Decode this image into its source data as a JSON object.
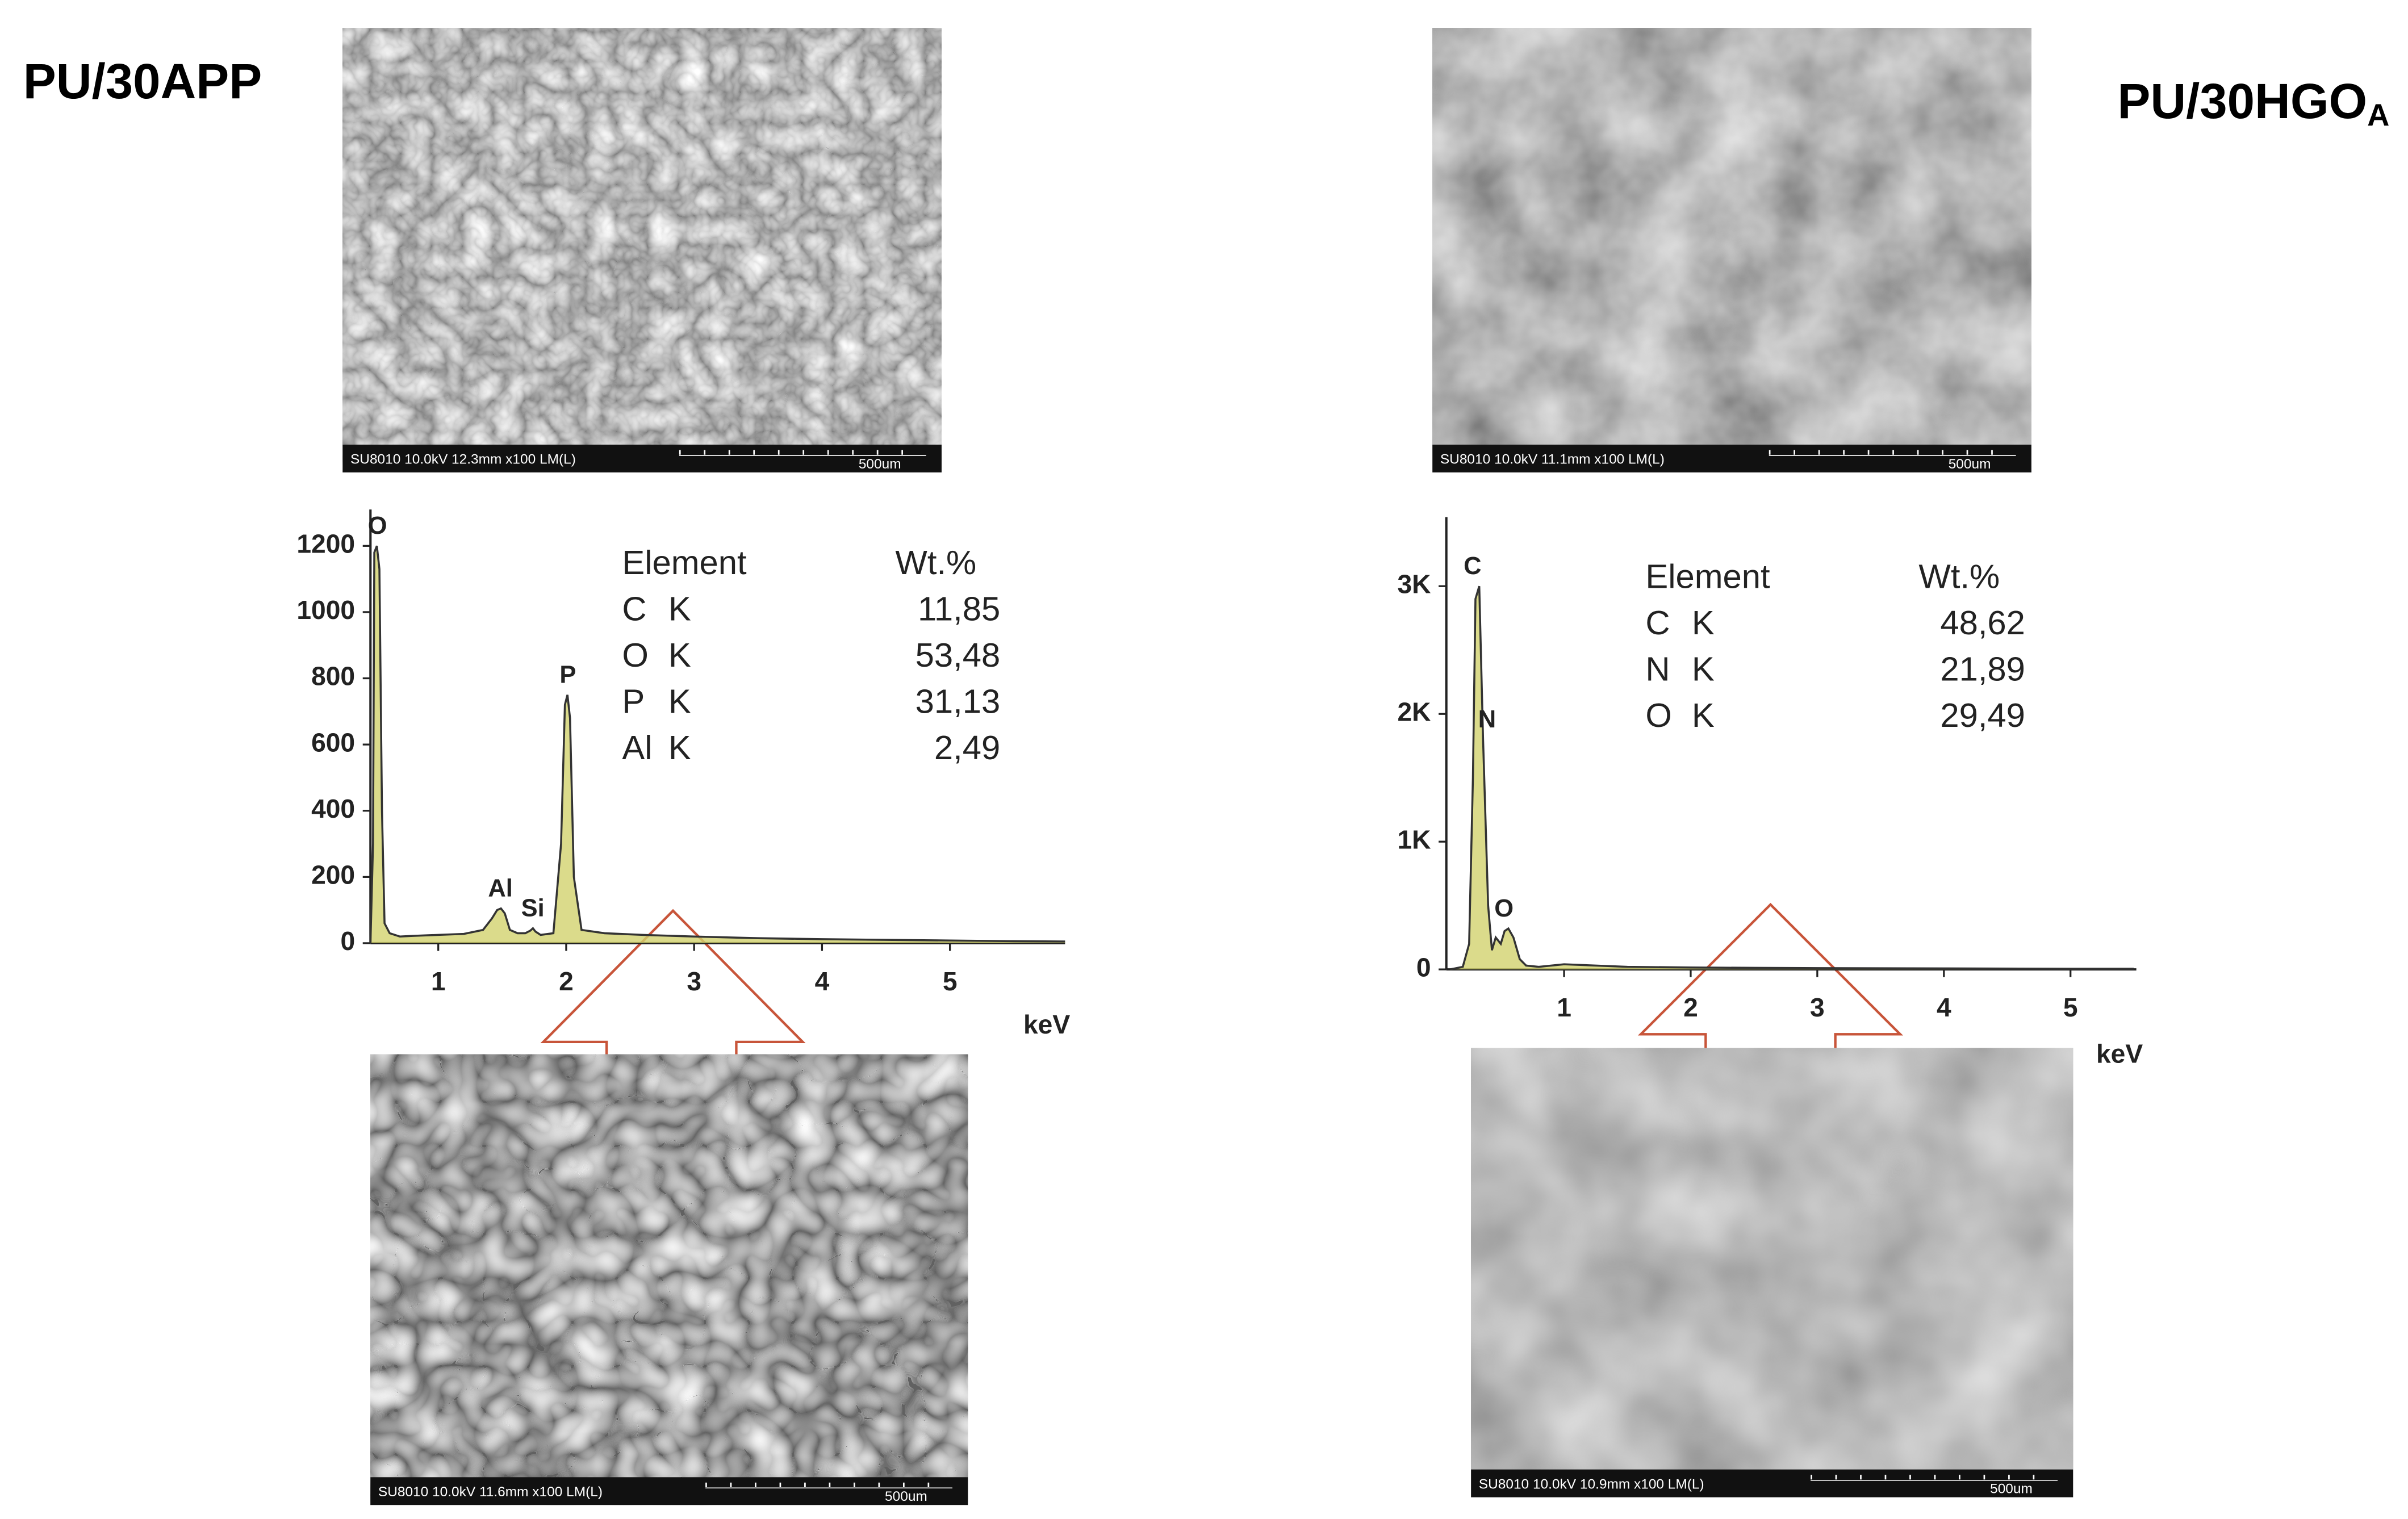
{
  "chart_data": [
    {
      "type": "line",
      "title": "PU/30APP",
      "xlabel": "keV",
      "x": [
        0.47,
        0.49,
        0.5,
        0.52,
        0.54,
        0.56,
        0.58,
        0.62,
        0.7,
        0.8,
        1.0,
        1.2,
        1.35,
        1.42,
        1.46,
        1.49,
        1.52,
        1.56,
        1.62,
        1.68,
        1.72,
        1.74,
        1.76,
        1.8,
        1.9,
        1.96,
        1.99,
        2.01,
        2.03,
        2.06,
        2.12,
        2.3,
        2.6,
        3.0,
        3.5,
        4.0,
        4.5,
        5.0,
        5.5,
        5.9
      ],
      "values": [
        0,
        300,
        1180,
        1200,
        1130,
        400,
        60,
        30,
        20,
        22,
        25,
        28,
        40,
        75,
        100,
        105,
        90,
        40,
        30,
        30,
        38,
        45,
        35,
        25,
        30,
        300,
        720,
        750,
        680,
        200,
        40,
        30,
        25,
        20,
        15,
        12,
        10,
        8,
        6,
        5
      ],
      "color": "#333333",
      "fill_color": "#d2d26e",
      "xlim": [
        0.47,
        5.9
      ],
      "xticks": [
        1,
        2,
        3,
        4,
        5
      ],
      "ylim": [
        0,
        1310
      ],
      "yticks": [
        0,
        200,
        400,
        600,
        800,
        1000,
        1200
      ],
      "annotations": [
        {
          "text": "O",
          "x": 0.525
        },
        {
          "text": "Al",
          "x": 1.486
        },
        {
          "text": "Si",
          "x": 1.739
        },
        {
          "text": "P",
          "x": 2.013
        }
      ],
      "table": {
        "columns": [
          "Element",
          "Wt.%"
        ],
        "rows": [
          [
            "C",
            "K",
            "11,85"
          ],
          [
            "O",
            "K",
            "53,48"
          ],
          [
            "P",
            "K",
            "31,13"
          ],
          [
            "Al",
            "K",
            "2,49"
          ]
        ]
      },
      "sem_images": [
        {
          "caption": "SU8010 10.0kV 12.3mm x100 LM(L)",
          "scale_label": "500um"
        },
        {
          "caption": "SU8010 10.0kV 11.6mm x100 LM(L)",
          "scale_label": "500um"
        }
      ]
    },
    {
      "type": "line",
      "title": "PU/30HGO",
      "title_subscript": "A",
      "xlabel": "keV",
      "x": [
        0.1,
        0.2,
        0.25,
        0.28,
        0.3,
        0.33,
        0.36,
        0.4,
        0.43,
        0.46,
        0.5,
        0.53,
        0.56,
        0.6,
        0.65,
        0.7,
        0.8,
        1.0,
        1.5,
        2.0,
        2.5,
        3.0,
        4.0,
        5.0,
        5.5
      ],
      "values": [
        0,
        20,
        200,
        1500,
        2900,
        3000,
        1800,
        500,
        150,
        250,
        200,
        300,
        320,
        250,
        80,
        30,
        20,
        40,
        20,
        15,
        12,
        10,
        8,
        5,
        5
      ],
      "color": "#333333",
      "fill_color": "#d2d26e",
      "xlim": [
        0.07,
        5.52
      ],
      "xticks": [
        1,
        2,
        3,
        4,
        5
      ],
      "ylim": [
        0,
        3540
      ],
      "yticks": [
        0,
        {
          "value": 1000,
          "label": "1K"
        },
        {
          "value": 2000,
          "label": "2K"
        },
        {
          "value": 3000,
          "label": "3K"
        }
      ],
      "annotations": [
        {
          "text": "C",
          "x": 0.277
        },
        {
          "text": "N",
          "x": 0.392
        },
        {
          "text": "O",
          "x": 0.525
        }
      ],
      "table": {
        "columns": [
          "Element",
          "Wt.%"
        ],
        "rows": [
          [
            "C",
            "K",
            "48,62"
          ],
          [
            "N",
            "K",
            "21,89"
          ],
          [
            "O",
            "K",
            "29,49"
          ]
        ]
      },
      "sem_images": [
        {
          "caption": "SU8010 10.0kV 11.1mm x100 LM(L)",
          "scale_label": "500um"
        },
        {
          "caption": "SU8010 10.0kV 10.9mm x100 LM(L)",
          "scale_label": "500um"
        }
      ]
    }
  ]
}
